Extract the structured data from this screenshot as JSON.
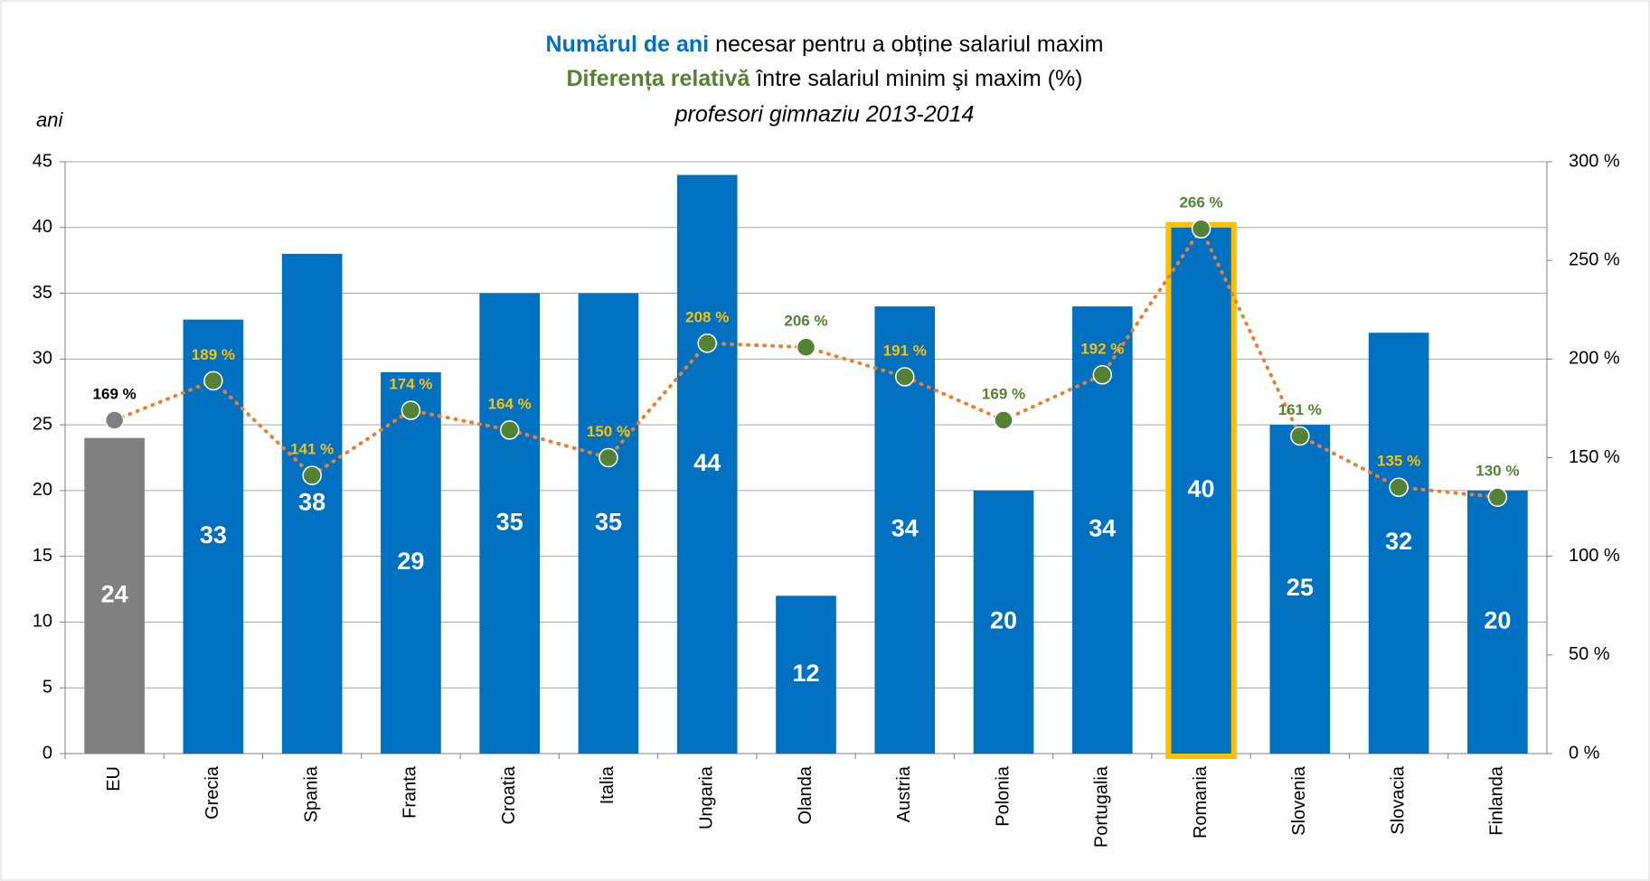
{
  "chart_data": {
    "type": "bar_line",
    "title": {
      "line1": [
        "Numărul de ani",
        "necesar pentru a obține salariul maxim"
      ],
      "line2": [
        "Diferența relativă",
        "între salariul minim şi maxim (%)"
      ],
      "subtitle": "profesori gimnaziu 2013-2014"
    },
    "y_label": "ani",
    "categories": [
      "EU",
      "Grecia",
      "Spania",
      "Franta",
      "Croatia",
      "Italia",
      "Ungaria",
      "Olanda",
      "Austria",
      "Polonia",
      "Portugalia",
      "Romania",
      "Slovenia",
      "Slovacia",
      "Finlanda"
    ],
    "series": [
      {
        "name": "Numărul de ani",
        "type": "bar",
        "color": "#0070c0",
        "colors": [
          "#808080",
          "#0070c0",
          "#0070c0",
          "#0070c0",
          "#0070c0",
          "#0070c0",
          "#0070c0",
          "#0070c0",
          "#0070c0",
          "#0070c0",
          "#0070c0",
          "#0070c0",
          "#0070c0",
          "#0070c0",
          "#0070c0"
        ],
        "values": [
          24,
          33,
          38,
          29,
          35,
          35,
          44,
          12,
          34,
          20,
          34,
          40,
          25,
          32,
          20
        ]
      },
      {
        "name": "Diferența relativă",
        "type": "line",
        "axis": "y2",
        "color": "#ed7d31",
        "marker_colors": [
          "#808080",
          "#548235",
          "#548235",
          "#548235",
          "#548235",
          "#548235",
          "#548235",
          "#548235",
          "#548235",
          "#548235",
          "#548235",
          "#548235",
          "#548235",
          "#548235",
          "#548235"
        ],
        "label_colors": [
          "#000000",
          "#ffc000",
          "#ffc000",
          "#ffc000",
          "#ffc000",
          "#ffc000",
          "#ffc000",
          "#548235",
          "#ffc000",
          "#548235",
          "#ffc000",
          "#548235",
          "#548235",
          "#ffc000",
          "#548235"
        ],
        "values": [
          169,
          189,
          141,
          174,
          164,
          150,
          208,
          206,
          191,
          169,
          192,
          266,
          161,
          135,
          130
        ],
        "value_labels": [
          "169 %",
          "189 %",
          "141 %",
          "174 %",
          "164 %",
          "150 %",
          "208 %",
          "206 %",
          "191 %",
          "169 %",
          "192 %",
          "266 %",
          "161 %",
          "135 %",
          "130 %"
        ]
      }
    ],
    "highlight_index": 11,
    "highlight_color": "#ffc000",
    "ylim": [
      0,
      45
    ],
    "yticks": [
      0,
      5,
      10,
      15,
      20,
      25,
      30,
      35,
      40,
      45
    ],
    "y2lim": [
      0,
      300
    ],
    "y2ticks": [
      {
        "value": 0,
        "label": "0 %"
      },
      {
        "value": 50,
        "label": "50 %"
      },
      {
        "value": 100,
        "label": "100 %"
      },
      {
        "value": 150,
        "label": "150 %"
      },
      {
        "value": 200,
        "label": "200 %"
      },
      {
        "value": 250,
        "label": "250 %"
      },
      {
        "value": 300,
        "label": "300 %"
      }
    ],
    "grid": true
  }
}
